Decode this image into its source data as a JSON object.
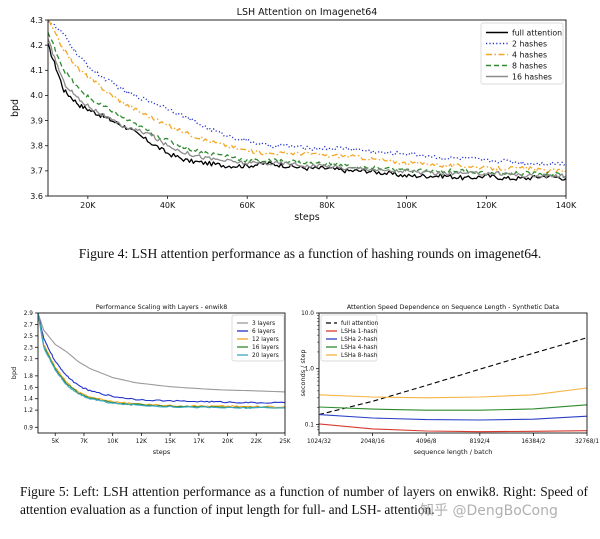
{
  "chart_data": [
    {
      "type": "line",
      "title": "LSH Attention on Imagenet64",
      "xlabel": "steps",
      "ylabel": "bpd",
      "xlim": [
        10000,
        140000
      ],
      "ylim": [
        3.6,
        4.3
      ],
      "xticks": [
        20000,
        40000,
        60000,
        80000,
        100000,
        120000,
        140000
      ],
      "xtick_labels": [
        "20K",
        "40K",
        "60K",
        "80K",
        "100K",
        "120K",
        "140K"
      ],
      "yticks": [
        3.6,
        3.7,
        3.8,
        3.9,
        4.0,
        4.1,
        4.2,
        4.3
      ],
      "ytick_labels": [
        "3.6",
        "3.7",
        "3.8",
        "3.9",
        "4.0",
        "4.1",
        "4.2",
        "4.3"
      ],
      "legend_position": "top-right",
      "series": [
        {
          "name": "full attention",
          "color": "#000000",
          "dash": "solid",
          "noise": 0.009,
          "x": [
            10000,
            14000,
            18000,
            22000,
            26000,
            30000,
            35000,
            40000,
            45000,
            50000,
            55000,
            60000,
            65000,
            70000,
            75000,
            80000,
            85000,
            90000,
            95000,
            100000,
            105000,
            110000,
            115000,
            120000,
            125000,
            130000,
            135000,
            140000
          ],
          "y": [
            4.2,
            4.02,
            3.96,
            3.93,
            3.9,
            3.87,
            3.82,
            3.77,
            3.74,
            3.73,
            3.72,
            3.72,
            3.73,
            3.72,
            3.71,
            3.71,
            3.7,
            3.7,
            3.69,
            3.68,
            3.68,
            3.68,
            3.67,
            3.68,
            3.67,
            3.67,
            3.68,
            3.67
          ]
        },
        {
          "name": "2 hashes",
          "color": "#2233cc",
          "dash": "dotted",
          "noise": 0.008,
          "x": [
            10000,
            14000,
            18000,
            22000,
            26000,
            30000,
            35000,
            40000,
            45000,
            50000,
            55000,
            60000,
            65000,
            70000,
            75000,
            80000,
            85000,
            90000,
            95000,
            100000,
            105000,
            110000,
            115000,
            120000,
            125000,
            130000,
            135000,
            140000
          ],
          "y": [
            4.3,
            4.24,
            4.15,
            4.09,
            4.05,
            4.01,
            3.98,
            3.95,
            3.91,
            3.87,
            3.84,
            3.82,
            3.8,
            3.8,
            3.79,
            3.79,
            3.79,
            3.78,
            3.77,
            3.77,
            3.76,
            3.75,
            3.75,
            3.74,
            3.74,
            3.73,
            3.73,
            3.73
          ]
        },
        {
          "name": "4 hashes",
          "color": "#f5a623",
          "dash": "dashdot",
          "noise": 0.008,
          "x": [
            10000,
            14000,
            18000,
            22000,
            26000,
            30000,
            35000,
            40000,
            45000,
            50000,
            55000,
            60000,
            65000,
            70000,
            75000,
            80000,
            85000,
            90000,
            95000,
            100000,
            105000,
            110000,
            115000,
            120000,
            125000,
            130000,
            135000,
            140000
          ],
          "y": [
            4.3,
            4.18,
            4.1,
            4.05,
            4.0,
            3.96,
            3.92,
            3.88,
            3.85,
            3.82,
            3.8,
            3.78,
            3.77,
            3.77,
            3.77,
            3.76,
            3.76,
            3.75,
            3.74,
            3.73,
            3.73,
            3.72,
            3.72,
            3.71,
            3.71,
            3.71,
            3.7,
            3.7
          ]
        },
        {
          "name": "8 hashes",
          "color": "#2e8b2e",
          "dash": "dashed",
          "noise": 0.008,
          "x": [
            10000,
            14000,
            18000,
            22000,
            26000,
            30000,
            35000,
            40000,
            45000,
            50000,
            55000,
            60000,
            65000,
            70000,
            75000,
            80000,
            85000,
            90000,
            95000,
            100000,
            105000,
            110000,
            115000,
            120000,
            125000,
            130000,
            135000,
            140000
          ],
          "y": [
            4.25,
            4.1,
            4.02,
            3.97,
            3.94,
            3.9,
            3.86,
            3.82,
            3.79,
            3.77,
            3.76,
            3.74,
            3.74,
            3.74,
            3.73,
            3.73,
            3.72,
            3.71,
            3.71,
            3.7,
            3.7,
            3.7,
            3.7,
            3.69,
            3.69,
            3.69,
            3.69,
            3.68
          ]
        },
        {
          "name": "16 hashes",
          "color": "#8c8c8c",
          "dash": "solid",
          "noise": 0.008,
          "x": [
            10000,
            14000,
            18000,
            22000,
            26000,
            30000,
            35000,
            40000,
            45000,
            50000,
            55000,
            60000,
            65000,
            70000,
            75000,
            80000,
            85000,
            90000,
            95000,
            100000,
            105000,
            110000,
            115000,
            120000,
            125000,
            130000,
            135000,
            140000
          ],
          "y": [
            4.22,
            4.05,
            3.98,
            3.94,
            3.9,
            3.87,
            3.85,
            3.8,
            3.77,
            3.75,
            3.74,
            3.73,
            3.73,
            3.73,
            3.72,
            3.72,
            3.71,
            3.71,
            3.7,
            3.7,
            3.69,
            3.69,
            3.69,
            3.69,
            3.69,
            3.68,
            3.68,
            3.68
          ]
        }
      ]
    },
    {
      "type": "line",
      "title": "Performance Scaling with Layers - enwik8",
      "xlabel": "steps",
      "ylabel": "bpd",
      "xlim": [
        3500,
        25000
      ],
      "ylim": [
        0.8,
        2.9
      ],
      "xticks": [
        5000,
        7500,
        10000,
        12500,
        15000,
        17500,
        20000,
        22500,
        25000
      ],
      "xtick_labels": [
        "5K",
        "7K",
        "10K",
        "12K",
        "15K",
        "17K",
        "20K",
        "22K",
        "25K"
      ],
      "yticks": [
        0.9,
        1.2,
        1.4,
        1.6,
        1.8,
        2.1,
        2.3,
        2.5,
        2.7,
        2.9
      ],
      "ytick_labels": [
        "0.9",
        "1.2",
        "1.4",
        "1.6",
        "1.8",
        "2.1",
        "2.3",
        "2.5",
        "2.7",
        "2.9"
      ],
      "legend_position": "top-right",
      "series": [
        {
          "name": "3 layers",
          "color": "#9a9a9a",
          "dash": "solid",
          "noise": 0.0,
          "x": [
            3500,
            4000,
            5000,
            6000,
            7000,
            8000,
            10000,
            12000,
            15000,
            18000,
            20000,
            22000,
            25000
          ],
          "y": [
            2.9,
            2.6,
            2.35,
            2.22,
            2.05,
            1.93,
            1.77,
            1.68,
            1.61,
            1.57,
            1.55,
            1.54,
            1.52
          ]
        },
        {
          "name": "6 layers",
          "color": "#2233cc",
          "dash": "solid",
          "noise": 0.012,
          "x": [
            3500,
            4000,
            5000,
            6000,
            7000,
            8000,
            10000,
            12000,
            15000,
            18000,
            20000,
            22000,
            25000
          ],
          "y": [
            2.9,
            2.45,
            2.05,
            1.8,
            1.63,
            1.54,
            1.44,
            1.39,
            1.36,
            1.35,
            1.34,
            1.33,
            1.33
          ]
        },
        {
          "name": "12 layers",
          "color": "#f5a623",
          "dash": "solid",
          "noise": 0.012,
          "x": [
            3500,
            4000,
            5000,
            6000,
            7000,
            8000,
            10000,
            12000,
            15000,
            18000,
            20000,
            22000,
            25000
          ],
          "y": [
            2.9,
            2.35,
            1.95,
            1.68,
            1.52,
            1.43,
            1.35,
            1.31,
            1.28,
            1.27,
            1.27,
            1.26,
            1.26
          ]
        },
        {
          "name": "16 layers",
          "color": "#2e8b2e",
          "dash": "solid",
          "noise": 0.012,
          "x": [
            3500,
            4000,
            5000,
            6000,
            7000,
            8000,
            10000,
            12000,
            15000,
            18000,
            20000,
            22000,
            25000
          ],
          "y": [
            2.9,
            2.32,
            1.92,
            1.66,
            1.5,
            1.41,
            1.33,
            1.3,
            1.27,
            1.26,
            1.25,
            1.25,
            1.24
          ]
        },
        {
          "name": "20 layers",
          "color": "#3aa8c9",
          "dash": "solid",
          "noise": 0.012,
          "x": [
            3500,
            4000,
            5000,
            6000,
            7000,
            8000,
            10000,
            12000,
            15000,
            18000,
            20000,
            22000,
            25000
          ],
          "y": [
            2.9,
            2.3,
            1.9,
            1.64,
            1.48,
            1.4,
            1.32,
            1.29,
            1.26,
            1.25,
            1.24,
            1.24,
            1.24
          ]
        }
      ]
    },
    {
      "type": "line",
      "title": "Attention Speed Dependence on Sequence Length - Synthetic Data",
      "xlabel": "sequence length / batch",
      "ylabel": "seconds / step",
      "xscale": "log2",
      "yscale": "log10",
      "xlim": [
        10,
        15
      ],
      "ylim": [
        0.07,
        10.0
      ],
      "xticks": [
        10,
        11,
        12,
        13,
        14,
        15
      ],
      "xtick_labels": [
        "1024/32",
        "2048/16",
        "4096/8",
        "8192/4",
        "16384/2",
        "32768/1"
      ],
      "yticks": [
        0.1,
        1.0,
        10.0
      ],
      "ytick_labels": [
        "0.1",
        "1.0",
        "10.0"
      ],
      "legend_position": "top-left",
      "series": [
        {
          "name": "full attention",
          "color": "#000000",
          "dash": "dashed",
          "x": [
            10,
            11,
            12,
            13,
            14,
            15
          ],
          "y": [
            0.15,
            0.26,
            0.5,
            0.98,
            1.9,
            3.6
          ]
        },
        {
          "name": "LSHa 1-hash",
          "color": "#d63b2f",
          "dash": "solid",
          "x": [
            10,
            11,
            12,
            13,
            14,
            15
          ],
          "y": [
            0.102,
            0.083,
            0.076,
            0.074,
            0.075,
            0.077
          ]
        },
        {
          "name": "LSHa 2-hash",
          "color": "#2b3fc4",
          "dash": "solid",
          "x": [
            10,
            11,
            12,
            13,
            14,
            15
          ],
          "y": [
            0.15,
            0.13,
            0.122,
            0.12,
            0.124,
            0.14
          ]
        },
        {
          "name": "LSHa 4-hash",
          "color": "#2e8b2e",
          "dash": "solid",
          "x": [
            10,
            11,
            12,
            13,
            14,
            15
          ],
          "y": [
            0.205,
            0.188,
            0.18,
            0.18,
            0.19,
            0.225
          ]
        },
        {
          "name": "LSHa 8-hash",
          "color": "#f5b342",
          "dash": "solid",
          "x": [
            10,
            11,
            12,
            13,
            14,
            15
          ],
          "y": [
            0.34,
            0.31,
            0.3,
            0.31,
            0.34,
            0.45
          ]
        }
      ]
    }
  ],
  "captions": {
    "figure4": "Figure 4: LSH attention performance as a function of hashing rounds on imagenet64.",
    "figure5": "Figure 5: Left: LSH attention performance as a function of number of layers on enwik8. Right: Speed of attention evaluation as a function of input length for full- and LSH- attention."
  },
  "watermark": "知乎 @DengBoCong"
}
